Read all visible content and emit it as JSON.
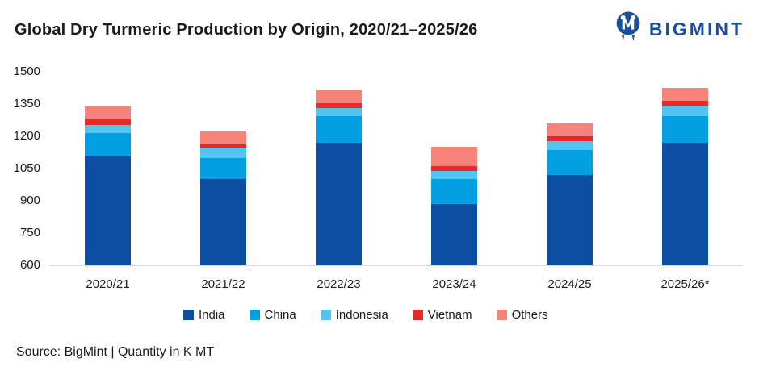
{
  "header": {
    "title": "Global Dry Turmeric Production by Origin, 2020/21–2025/26",
    "logo_text": "BIGMINT"
  },
  "chart_data": {
    "type": "bar",
    "stacked": true,
    "title": "Global Dry Turmeric Production by Origin, 2020/21–2025/26",
    "xlabel": "",
    "ylabel": "Quantity in K MT",
    "categories": [
      "2020/21",
      "2021/22",
      "2022/23",
      "2023/24",
      "2024/25",
      "2025/26*"
    ],
    "series": [
      {
        "name": "India",
        "color": "#0b4ea2",
        "values": [
          1105,
          1000,
          1170,
          885,
          1020,
          1170
        ]
      },
      {
        "name": "China",
        "color": "#02a0e2",
        "values": [
          110,
          100,
          122,
          117,
          115,
          125
        ]
      },
      {
        "name": "Indonesia",
        "color": "#53c3f0",
        "values": [
          38,
          42,
          41,
          38,
          41,
          45
        ]
      },
      {
        "name": "Vietnam",
        "color": "#e32b28",
        "values": [
          25,
          19,
          21,
          21,
          23,
          24
        ]
      },
      {
        "name": "Others",
        "color": "#f5837c",
        "values": [
          60,
          61,
          63,
          90,
          60,
          62
        ]
      }
    ],
    "totals": [
      1338,
      1222,
      1417,
      1151,
      1259,
      1426
    ],
    "ylim": [
      600,
      1500
    ],
    "yticks": [
      600,
      750,
      900,
      1050,
      1200,
      1350,
      1500
    ],
    "grid": false,
    "legend_position": "bottom"
  },
  "footer": {
    "source_text": "Source: BigMint | Quantity in K MT"
  },
  "colors": {
    "logo_blue": "#1b4f9e",
    "axis_line": "#d9d9d9",
    "text": "#1a1a1a"
  }
}
